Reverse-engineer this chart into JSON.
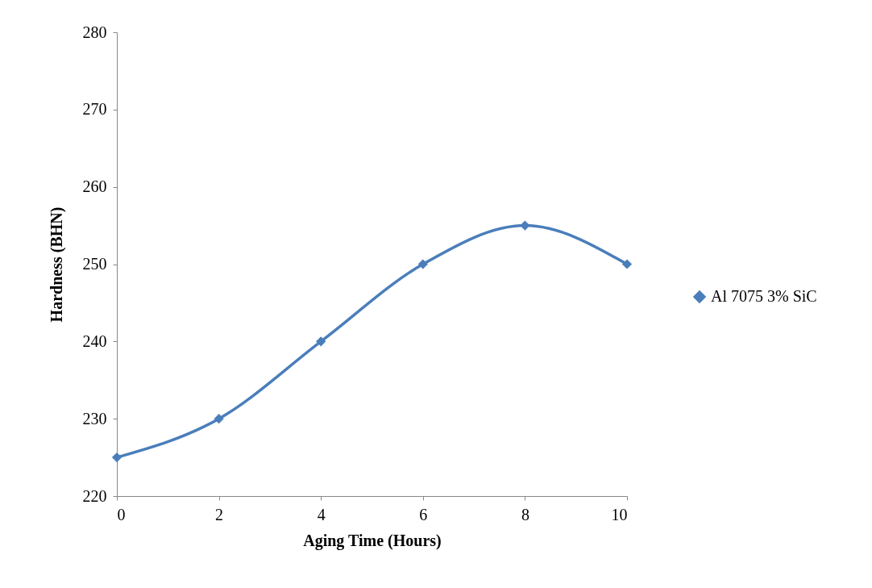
{
  "chart_data": {
    "type": "line",
    "xlabel": "Aging Time (Hours)",
    "ylabel": "Hardness (BHN)",
    "x": [
      0,
      2,
      4,
      6,
      8,
      10
    ],
    "series": [
      {
        "name": "Al 7075 3% SiC",
        "color": "#4a7ebb",
        "values": [
          225,
          230,
          240,
          250,
          255,
          250
        ]
      }
    ],
    "xlim": [
      0,
      10
    ],
    "xticks": [
      0,
      2,
      4,
      6,
      8,
      10
    ],
    "ylim": [
      220,
      280
    ],
    "yticks": [
      220,
      230,
      240,
      250,
      260,
      270,
      280
    ],
    "grid": false,
    "legend": "right",
    "marker": "diamond",
    "line_style": "solid"
  }
}
